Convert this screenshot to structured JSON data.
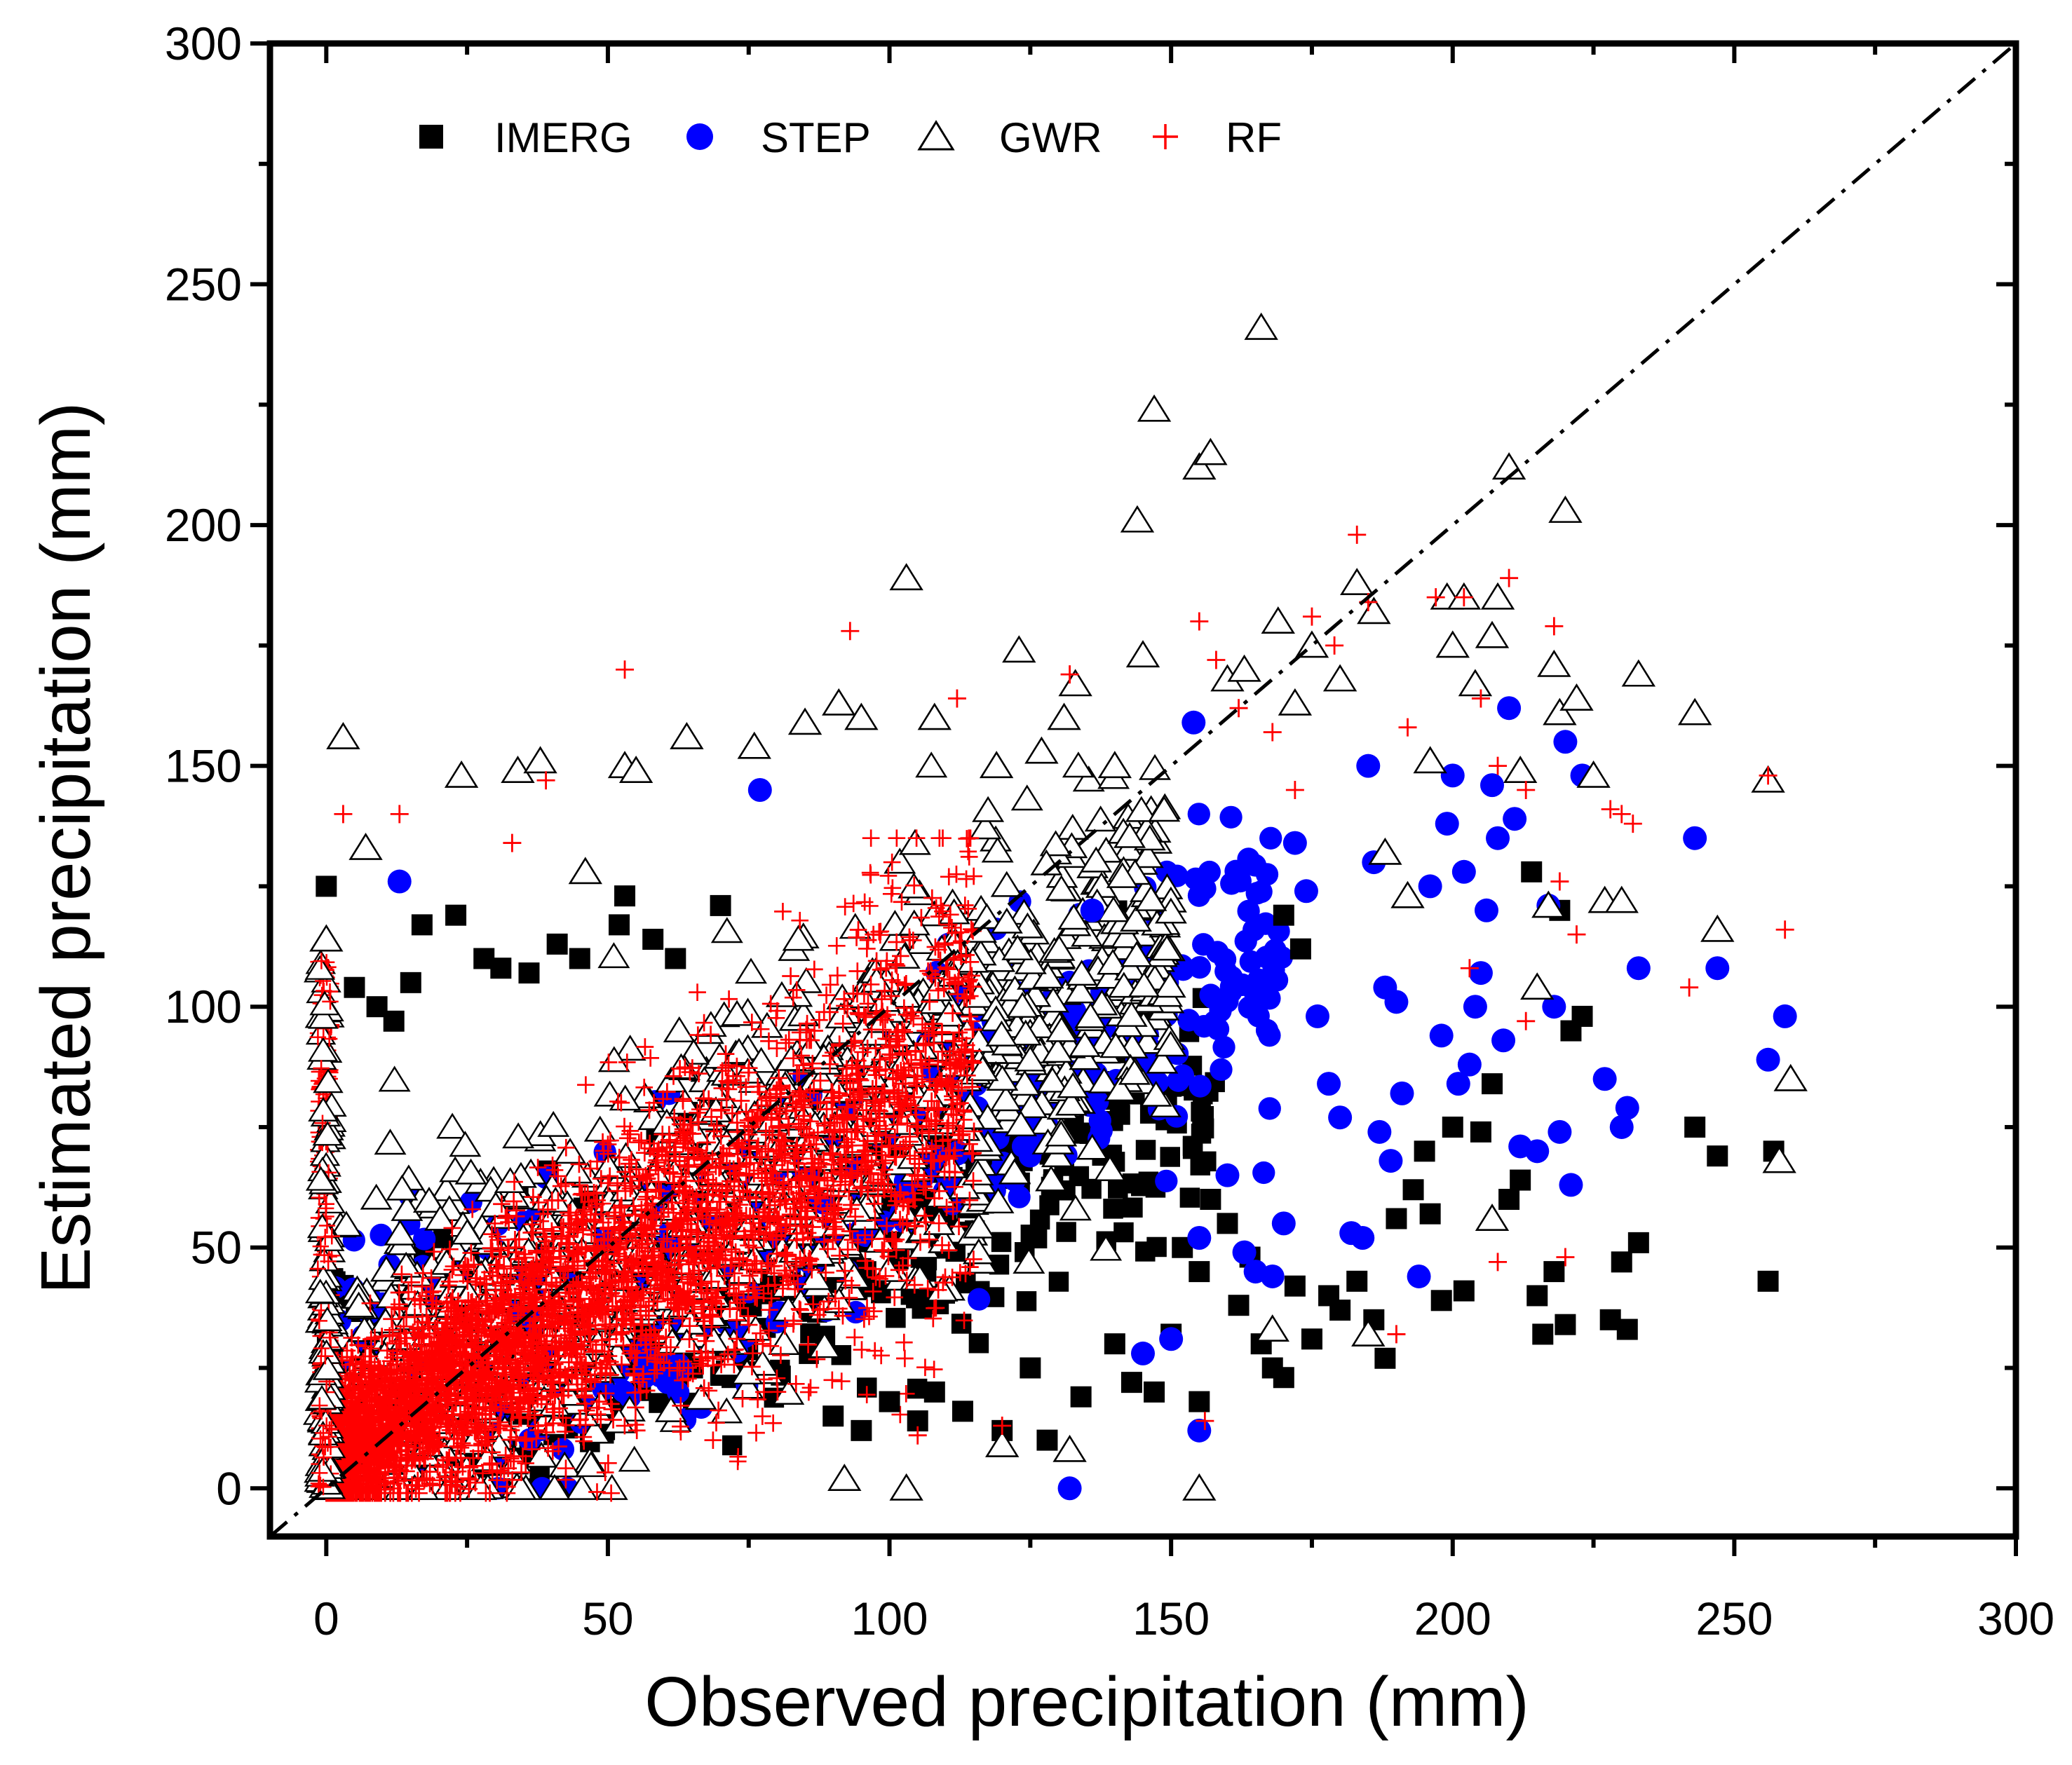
{
  "chart_data": {
    "type": "scatter",
    "title": "",
    "xlabel": "Observed precipitation (mm)",
    "ylabel": "Estimated precipitation (mm)",
    "xlim": [
      -10,
      300
    ],
    "ylim": [
      -10,
      300
    ],
    "x_ticks": [
      0,
      50,
      100,
      150,
      200,
      250,
      300
    ],
    "y_ticks": [
      0,
      50,
      100,
      150,
      200,
      250,
      300
    ],
    "grid": false,
    "legend_position": "top-left",
    "reference_line": {
      "label": "1:1 line",
      "style": "dash-dot",
      "points": [
        [
          -10,
          -10
        ],
        [
          300,
          300
        ]
      ]
    },
    "series": [
      {
        "name": "IMERG",
        "marker": "filled-square",
        "color": "#000000",
        "points": [
          [
            0,
            125
          ],
          [
            5,
            104
          ],
          [
            9,
            100
          ],
          [
            12,
            97
          ],
          [
            15,
            105
          ],
          [
            17,
            117
          ],
          [
            23,
            119
          ],
          [
            28,
            110
          ],
          [
            31,
            108
          ],
          [
            36,
            107
          ],
          [
            41,
            113
          ],
          [
            45,
            110
          ],
          [
            52,
            117
          ],
          [
            53,
            123
          ],
          [
            58,
            114
          ],
          [
            62,
            110
          ],
          [
            70,
            121
          ],
          [
            90,
            15
          ],
          [
            95,
            12
          ],
          [
            100,
            18
          ],
          [
            105,
            14
          ],
          [
            108,
            20
          ],
          [
            113,
            16
          ],
          [
            120,
            12
          ],
          [
            125,
            25
          ],
          [
            128,
            10
          ],
          [
            134,
            19
          ],
          [
            140,
            30
          ],
          [
            143,
            22
          ],
          [
            147,
            20
          ],
          [
            150,
            32
          ],
          [
            152,
            50
          ],
          [
            155,
            45
          ],
          [
            155,
            18
          ],
          [
            157,
            60
          ],
          [
            160,
            55
          ],
          [
            162,
            38
          ],
          [
            164,
            48
          ],
          [
            166,
            30
          ],
          [
            168,
            25
          ],
          [
            170,
            23
          ],
          [
            172,
            42
          ],
          [
            175,
            31
          ],
          [
            178,
            40
          ],
          [
            180,
            37
          ],
          [
            183,
            43
          ],
          [
            186,
            35
          ],
          [
            188,
            27
          ],
          [
            190,
            56
          ],
          [
            193,
            62
          ],
          [
            195,
            70
          ],
          [
            196,
            57
          ],
          [
            198,
            39
          ],
          [
            200,
            75
          ],
          [
            202,
            41
          ],
          [
            205,
            74
          ],
          [
            207,
            84
          ],
          [
            210,
            60
          ],
          [
            212,
            64
          ],
          [
            214,
            128
          ],
          [
            215,
            40
          ],
          [
            216,
            32
          ],
          [
            218,
            45
          ],
          [
            219,
            120
          ],
          [
            220,
            34
          ],
          [
            221,
            95
          ],
          [
            223,
            98
          ],
          [
            228,
            35
          ],
          [
            230,
            47
          ],
          [
            231,
            33
          ],
          [
            233,
            51
          ],
          [
            243,
            75
          ],
          [
            247,
            69
          ],
          [
            256,
            43
          ],
          [
            257,
            70
          ],
          [
            170,
            119
          ],
          [
            173,
            112
          ]
        ]
      },
      {
        "name": "STEP",
        "marker": "filled-circle",
        "color": "#0000ff",
        "points": [
          [
            13,
            126
          ],
          [
            77,
            145
          ],
          [
            132,
            0
          ],
          [
            136,
            120
          ],
          [
            145,
            28
          ],
          [
            150,
            31
          ],
          [
            154,
            159
          ],
          [
            155,
            12
          ],
          [
            155,
            52
          ],
          [
            160,
            65
          ],
          [
            163,
            49
          ],
          [
            165,
            45
          ],
          [
            168,
            44
          ],
          [
            170,
            55
          ],
          [
            172,
            134
          ],
          [
            174,
            124
          ],
          [
            176,
            98
          ],
          [
            178,
            84
          ],
          [
            180,
            77
          ],
          [
            182,
            53
          ],
          [
            184,
            52
          ],
          [
            185,
            150
          ],
          [
            186,
            130
          ],
          [
            187,
            74
          ],
          [
            188,
            104
          ],
          [
            189,
            68
          ],
          [
            190,
            101
          ],
          [
            191,
            82
          ],
          [
            194,
            44
          ],
          [
            196,
            125
          ],
          [
            198,
            94
          ],
          [
            199,
            138
          ],
          [
            200,
            148
          ],
          [
            201,
            84
          ],
          [
            202,
            128
          ],
          [
            203,
            88
          ],
          [
            204,
            100
          ],
          [
            205,
            107
          ],
          [
            206,
            120
          ],
          [
            207,
            146
          ],
          [
            208,
            135
          ],
          [
            209,
            93
          ],
          [
            210,
            162
          ],
          [
            211,
            139
          ],
          [
            212,
            71
          ],
          [
            215,
            70
          ],
          [
            217,
            121
          ],
          [
            218,
            100
          ],
          [
            219,
            74
          ],
          [
            220,
            155
          ],
          [
            221,
            63
          ],
          [
            223,
            148
          ],
          [
            227,
            85
          ],
          [
            230,
            75
          ],
          [
            231,
            79
          ],
          [
            233,
            108
          ],
          [
            243,
            135
          ],
          [
            247,
            108
          ],
          [
            256,
            89
          ],
          [
            259,
            98
          ]
        ]
      },
      {
        "name": "GWR",
        "marker": "open-triangle",
        "color": "#000000",
        "points": [
          [
            0,
            114
          ],
          [
            3,
            156
          ],
          [
            7,
            133
          ],
          [
            24,
            148
          ],
          [
            34,
            149
          ],
          [
            38,
            151
          ],
          [
            46,
            128
          ],
          [
            53,
            150
          ],
          [
            55,
            149
          ],
          [
            64,
            156
          ],
          [
            76,
            154
          ],
          [
            85,
            159
          ],
          [
            91,
            163
          ],
          [
            95,
            160
          ],
          [
            103,
            189
          ],
          [
            108,
            160
          ],
          [
            119,
            150
          ],
          [
            123,
            174
          ],
          [
            127,
            153
          ],
          [
            131,
            160
          ],
          [
            133,
            167
          ],
          [
            140,
            150
          ],
          [
            144,
            201
          ],
          [
            145,
            173
          ],
          [
            147,
            224
          ],
          [
            155,
            212
          ],
          [
            157,
            215
          ],
          [
            160,
            168
          ],
          [
            163,
            170
          ],
          [
            166,
            241
          ],
          [
            169,
            180
          ],
          [
            172,
            163
          ],
          [
            175,
            175
          ],
          [
            180,
            168
          ],
          [
            183,
            188
          ],
          [
            186,
            182
          ],
          [
            188,
            132
          ],
          [
            192,
            123
          ],
          [
            196,
            151
          ],
          [
            199,
            185
          ],
          [
            200,
            175
          ],
          [
            202,
            185
          ],
          [
            204,
            167
          ],
          [
            207,
            177
          ],
          [
            208,
            185
          ],
          [
            210,
            212
          ],
          [
            212,
            149
          ],
          [
            215,
            104
          ],
          [
            217,
            121
          ],
          [
            218,
            171
          ],
          [
            219,
            161
          ],
          [
            220,
            203
          ],
          [
            222,
            164
          ],
          [
            225,
            148
          ],
          [
            227,
            122
          ],
          [
            230,
            122
          ],
          [
            233,
            169
          ],
          [
            243,
            161
          ],
          [
            247,
            116
          ],
          [
            256,
            147
          ],
          [
            258,
            68
          ],
          [
            260,
            85
          ],
          [
            92,
            2
          ],
          [
            103,
            0
          ],
          [
            120,
            9
          ],
          [
            132,
            8
          ],
          [
            155,
            0
          ],
          [
            168,
            33
          ],
          [
            185,
            32
          ],
          [
            207,
            56
          ]
        ]
      },
      {
        "name": "RF",
        "marker": "plus",
        "color": "#ff0000",
        "points": [
          [
            3,
            140
          ],
          [
            13,
            140
          ],
          [
            33,
            134
          ],
          [
            39,
            147
          ],
          [
            53,
            170
          ],
          [
            93,
            178
          ],
          [
            112,
            164
          ],
          [
            132,
            169
          ],
          [
            155,
            180
          ],
          [
            158,
            172
          ],
          [
            162,
            162
          ],
          [
            168,
            157
          ],
          [
            172,
            145
          ],
          [
            175,
            181
          ],
          [
            179,
            175
          ],
          [
            183,
            198
          ],
          [
            185,
            184
          ],
          [
            192,
            158
          ],
          [
            197,
            185
          ],
          [
            202,
            185
          ],
          [
            205,
            164
          ],
          [
            208,
            150
          ],
          [
            210,
            189
          ],
          [
            213,
            145
          ],
          [
            218,
            179
          ],
          [
            219,
            126
          ],
          [
            222,
            115
          ],
          [
            228,
            141
          ],
          [
            230,
            140
          ],
          [
            232,
            138
          ],
          [
            242,
            104
          ],
          [
            256,
            148
          ],
          [
            259,
            116
          ],
          [
            203,
            108
          ],
          [
            213,
            97
          ],
          [
            208,
            47
          ],
          [
            220,
            48
          ],
          [
            190,
            32
          ],
          [
            156,
            14
          ],
          [
            105,
            11
          ],
          [
            120,
            13
          ]
        ]
      }
    ],
    "dense_cloud": {
      "description": "dense overlapping cloud of all four series for observed 0-150 mm",
      "x_range": [
        0,
        150
      ],
      "center_slope": 0.7
    }
  }
}
